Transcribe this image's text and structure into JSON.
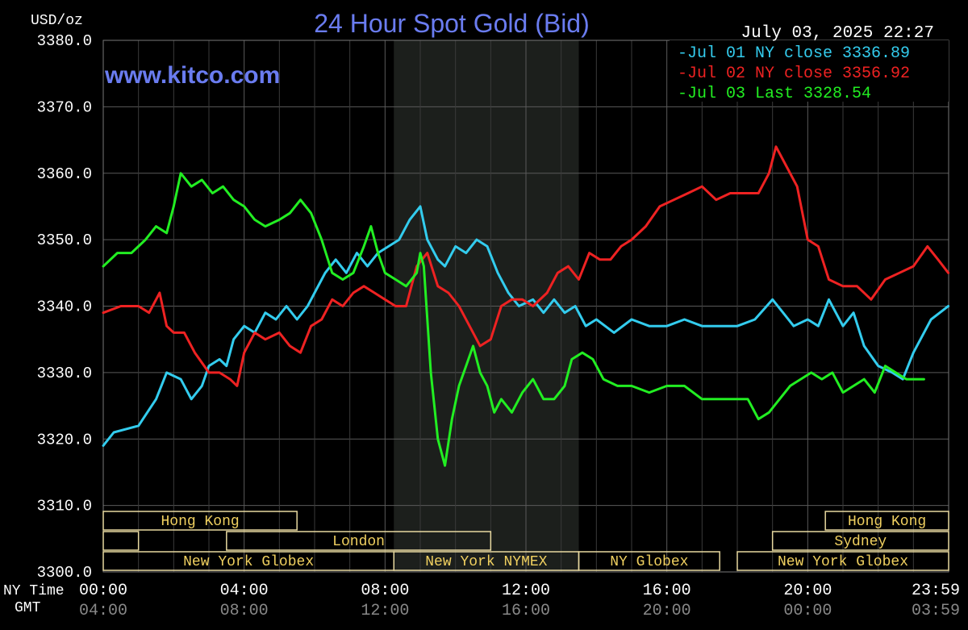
{
  "chart_data": {
    "type": "line",
    "title": "24 Hour Spot Gold (Bid)",
    "watermark": "www.kitco.com",
    "ylabel": "USD/oz",
    "timestamp": "July 03, 2025 22:27",
    "ylim": [
      3300,
      3380
    ],
    "y_ticks": [
      "3380.0",
      "3370.0",
      "3360.0",
      "3350.0",
      "3340.0",
      "3330.0",
      "3320.0",
      "3310.0",
      "3300.0"
    ],
    "xlim": [
      0,
      24
    ],
    "x_rows": [
      {
        "label": "NY Time",
        "ticks": [
          "00:00",
          "04:00",
          "08:00",
          "12:00",
          "16:00",
          "20:00",
          "23:59"
        ]
      },
      {
        "label": "GMT",
        "ticks": [
          "04:00",
          "08:00",
          "12:00",
          "16:00",
          "20:00",
          "00:00",
          "03:59"
        ]
      }
    ],
    "shaded_region": [
      8.25,
      13.5
    ],
    "sessions": [
      {
        "label": "Hong Kong",
        "start": 0,
        "end": 5.5,
        "row": 0
      },
      {
        "label": "Hong Kong",
        "start": 20.5,
        "end": 24,
        "row": 0
      },
      {
        "label": "",
        "start": 0,
        "end": 1,
        "row": 1
      },
      {
        "label": "London",
        "start": 3.5,
        "end": 11,
        "row": 1
      },
      {
        "label": "Sydney",
        "start": 19,
        "end": 24,
        "row": 1
      },
      {
        "label": "New York Globex",
        "start": 0,
        "end": 8.25,
        "row": 2
      },
      {
        "label": "New York NYMEX",
        "start": 8.25,
        "end": 13.5,
        "row": 2
      },
      {
        "label": "NY Globex",
        "start": 13.5,
        "end": 17.5,
        "row": 2
      },
      {
        "label": "New York Globex",
        "start": 18,
        "end": 24,
        "row": 2
      }
    ],
    "series": [
      {
        "name": "Jul 01 NY close 3336.89",
        "color": "#33ccee",
        "points": [
          [
            0,
            3319
          ],
          [
            0.3,
            3321
          ],
          [
            1,
            3322
          ],
          [
            1.5,
            3326
          ],
          [
            1.8,
            3330
          ],
          [
            2.2,
            3329
          ],
          [
            2.5,
            3326
          ],
          [
            2.8,
            3328
          ],
          [
            3,
            3331
          ],
          [
            3.3,
            3332
          ],
          [
            3.5,
            3331
          ],
          [
            3.7,
            3335
          ],
          [
            4,
            3337
          ],
          [
            4.3,
            3336
          ],
          [
            4.6,
            3339
          ],
          [
            4.9,
            3338
          ],
          [
            5.2,
            3340
          ],
          [
            5.5,
            3338
          ],
          [
            5.8,
            3340
          ],
          [
            6,
            3342
          ],
          [
            6.3,
            3345
          ],
          [
            6.6,
            3347
          ],
          [
            6.9,
            3345
          ],
          [
            7.2,
            3348
          ],
          [
            7.5,
            3346
          ],
          [
            7.8,
            3348
          ],
          [
            8.1,
            3349
          ],
          [
            8.4,
            3350
          ],
          [
            8.7,
            3353
          ],
          [
            9,
            3355
          ],
          [
            9.2,
            3350
          ],
          [
            9.5,
            3347
          ],
          [
            9.7,
            3346
          ],
          [
            10,
            3349
          ],
          [
            10.3,
            3348
          ],
          [
            10.6,
            3350
          ],
          [
            10.9,
            3349
          ],
          [
            11.2,
            3345
          ],
          [
            11.5,
            3342
          ],
          [
            11.8,
            3340
          ],
          [
            12.2,
            3341
          ],
          [
            12.5,
            3339
          ],
          [
            12.8,
            3341
          ],
          [
            13.1,
            3339
          ],
          [
            13.4,
            3340
          ],
          [
            13.7,
            3337
          ],
          [
            14,
            3338
          ],
          [
            14.5,
            3336
          ],
          [
            15,
            3338
          ],
          [
            15.5,
            3337
          ],
          [
            16,
            3337
          ],
          [
            16.5,
            3338
          ],
          [
            17,
            3337
          ],
          [
            18,
            3337
          ],
          [
            18.5,
            3338
          ],
          [
            19,
            3341
          ],
          [
            19.3,
            3339
          ],
          [
            19.6,
            3337
          ],
          [
            20,
            3338
          ],
          [
            20.3,
            3337
          ],
          [
            20.6,
            3341
          ],
          [
            21,
            3337
          ],
          [
            21.3,
            3339
          ],
          [
            21.6,
            3334
          ],
          [
            22,
            3331
          ],
          [
            22.4,
            3330
          ],
          [
            22.7,
            3329
          ],
          [
            23,
            3333
          ],
          [
            23.5,
            3338
          ],
          [
            23.99,
            3340
          ]
        ]
      },
      {
        "name": "Jul 02 NY close 3356.92",
        "color": "#ee2222",
        "points": [
          [
            0,
            3339
          ],
          [
            0.5,
            3340
          ],
          [
            1,
            3340
          ],
          [
            1.3,
            3339
          ],
          [
            1.6,
            3342
          ],
          [
            1.8,
            3337
          ],
          [
            2,
            3336
          ],
          [
            2.3,
            3336
          ],
          [
            2.6,
            3333
          ],
          [
            3,
            3330
          ],
          [
            3.3,
            3330
          ],
          [
            3.6,
            3329
          ],
          [
            3.8,
            3328
          ],
          [
            4,
            3333
          ],
          [
            4.3,
            3336
          ],
          [
            4.6,
            3335
          ],
          [
            5,
            3336
          ],
          [
            5.3,
            3334
          ],
          [
            5.6,
            3333
          ],
          [
            5.9,
            3337
          ],
          [
            6.2,
            3338
          ],
          [
            6.5,
            3341
          ],
          [
            6.8,
            3340
          ],
          [
            7.1,
            3342
          ],
          [
            7.4,
            3343
          ],
          [
            7.7,
            3342
          ],
          [
            8,
            3341
          ],
          [
            8.3,
            3340
          ],
          [
            8.6,
            3340
          ],
          [
            8.9,
            3346
          ],
          [
            9.2,
            3348
          ],
          [
            9.5,
            3343
          ],
          [
            9.8,
            3342
          ],
          [
            10.1,
            3340
          ],
          [
            10.4,
            3337
          ],
          [
            10.7,
            3334
          ],
          [
            11,
            3335
          ],
          [
            11.3,
            3340
          ],
          [
            11.6,
            3341
          ],
          [
            11.9,
            3341
          ],
          [
            12.2,
            3340
          ],
          [
            12.6,
            3342
          ],
          [
            12.9,
            3345
          ],
          [
            13.2,
            3346
          ],
          [
            13.5,
            3344
          ],
          [
            13.8,
            3348
          ],
          [
            14.1,
            3347
          ],
          [
            14.4,
            3347
          ],
          [
            14.7,
            3349
          ],
          [
            15,
            3350
          ],
          [
            15.4,
            3352
          ],
          [
            15.8,
            3355
          ],
          [
            16.2,
            3356
          ],
          [
            16.6,
            3357
          ],
          [
            17,
            3358
          ],
          [
            17.4,
            3356
          ],
          [
            17.8,
            3357
          ],
          [
            18.2,
            3357
          ],
          [
            18.6,
            3357
          ],
          [
            18.9,
            3360
          ],
          [
            19.1,
            3364
          ],
          [
            19.4,
            3361
          ],
          [
            19.7,
            3358
          ],
          [
            20,
            3350
          ],
          [
            20.3,
            3349
          ],
          [
            20.6,
            3344
          ],
          [
            21,
            3343
          ],
          [
            21.4,
            3343
          ],
          [
            21.8,
            3341
          ],
          [
            22.2,
            3344
          ],
          [
            22.6,
            3345
          ],
          [
            23,
            3346
          ],
          [
            23.4,
            3349
          ],
          [
            23.7,
            3347
          ],
          [
            23.99,
            3345
          ]
        ]
      },
      {
        "name": "Jul 03 Last 3328.54",
        "color": "#22ee22",
        "points": [
          [
            0,
            3346
          ],
          [
            0.4,
            3348
          ],
          [
            0.8,
            3348
          ],
          [
            1.2,
            3350
          ],
          [
            1.5,
            3352
          ],
          [
            1.8,
            3351
          ],
          [
            2,
            3355
          ],
          [
            2.2,
            3360
          ],
          [
            2.5,
            3358
          ],
          [
            2.8,
            3359
          ],
          [
            3.1,
            3357
          ],
          [
            3.4,
            3358
          ],
          [
            3.7,
            3356
          ],
          [
            4,
            3355
          ],
          [
            4.3,
            3353
          ],
          [
            4.6,
            3352
          ],
          [
            5,
            3353
          ],
          [
            5.3,
            3354
          ],
          [
            5.6,
            3356
          ],
          [
            5.9,
            3354
          ],
          [
            6.2,
            3350
          ],
          [
            6.5,
            3345
          ],
          [
            6.8,
            3344
          ],
          [
            7.1,
            3345
          ],
          [
            7.4,
            3349
          ],
          [
            7.6,
            3352
          ],
          [
            7.8,
            3348
          ],
          [
            8,
            3345
          ],
          [
            8.3,
            3344
          ],
          [
            8.6,
            3343
          ],
          [
            8.9,
            3345
          ],
          [
            9,
            3348
          ],
          [
            9.1,
            3346
          ],
          [
            9.3,
            3330
          ],
          [
            9.5,
            3320
          ],
          [
            9.7,
            3316
          ],
          [
            9.9,
            3323
          ],
          [
            10.1,
            3328
          ],
          [
            10.3,
            3331
          ],
          [
            10.5,
            3334
          ],
          [
            10.7,
            3330
          ],
          [
            10.9,
            3328
          ],
          [
            11.1,
            3324
          ],
          [
            11.3,
            3326
          ],
          [
            11.6,
            3324
          ],
          [
            11.9,
            3327
          ],
          [
            12.2,
            3329
          ],
          [
            12.5,
            3326
          ],
          [
            12.8,
            3326
          ],
          [
            13.1,
            3328
          ],
          [
            13.3,
            3332
          ],
          [
            13.6,
            3333
          ],
          [
            13.9,
            3332
          ],
          [
            14.2,
            3329
          ],
          [
            14.6,
            3328
          ],
          [
            15,
            3328
          ],
          [
            15.5,
            3327
          ],
          [
            16,
            3328
          ],
          [
            16.5,
            3328
          ],
          [
            17,
            3326
          ],
          [
            17.5,
            3326
          ],
          [
            18,
            3326
          ],
          [
            18.3,
            3326
          ],
          [
            18.6,
            3323
          ],
          [
            18.9,
            3324
          ],
          [
            19.2,
            3326
          ],
          [
            19.5,
            3328
          ],
          [
            19.8,
            3329
          ],
          [
            20.1,
            3330
          ],
          [
            20.4,
            3329
          ],
          [
            20.7,
            3330
          ],
          [
            21,
            3327
          ],
          [
            21.3,
            3328
          ],
          [
            21.6,
            3329
          ],
          [
            21.9,
            3327
          ],
          [
            22.2,
            3331
          ],
          [
            22.5,
            3330
          ],
          [
            22.8,
            3329
          ],
          [
            23.1,
            3329
          ],
          [
            23.3,
            3329
          ]
        ]
      }
    ]
  }
}
